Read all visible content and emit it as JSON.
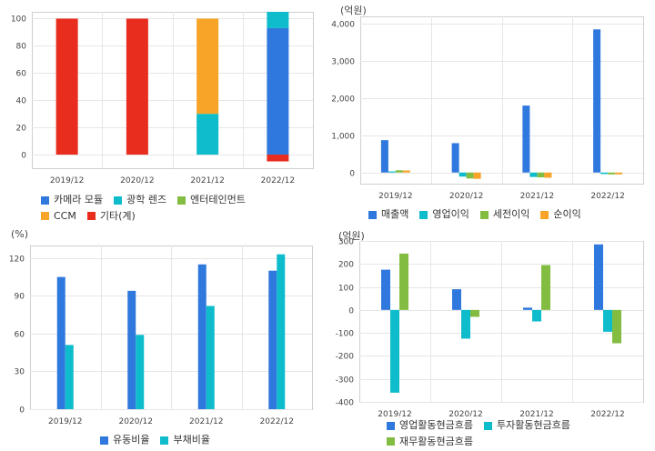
{
  "colors": {
    "blue": "#2f78de",
    "teal": "#0fbccc",
    "green": "#82bd41",
    "orange": "#f7a428",
    "red": "#e82c1e",
    "grid": "#e6e6e6",
    "axis": "#cfcfcf"
  },
  "chart_data": [
    {
      "id": "chart1",
      "type": "bar",
      "stacked": true,
      "title": "",
      "unit_label": "",
      "categories": [
        "2019/12",
        "2020/12",
        "2021/12",
        "2022/12"
      ],
      "ylim": [
        -10,
        105
      ],
      "yticks": [
        0,
        20,
        40,
        60,
        80,
        100
      ],
      "grid": true,
      "legend_position": "bottom-left",
      "series": [
        {
          "name": "카메라 모듈",
          "color": "#2f78de",
          "values": [
            0,
            0,
            0,
            93
          ]
        },
        {
          "name": "광학 렌즈",
          "color": "#0fbccc",
          "values": [
            0,
            0,
            30,
            12
          ]
        },
        {
          "name": "엔터테인먼트",
          "color": "#82bd41",
          "values": [
            0,
            0,
            0,
            0
          ]
        },
        {
          "name": "CCM",
          "color": "#f7a428",
          "values": [
            0,
            0,
            70,
            0
          ]
        },
        {
          "name": "기타(계)",
          "color": "#e82c1e",
          "values": [
            100,
            100,
            0,
            -5
          ]
        }
      ]
    },
    {
      "id": "chart2",
      "type": "bar",
      "title": "",
      "unit_label": "(억원)",
      "categories": [
        "2019/12",
        "2020/12",
        "2021/12",
        "2022/12"
      ],
      "ylim": [
        -300,
        4200
      ],
      "yticks": [
        0,
        1000,
        2000,
        3000,
        4000
      ],
      "ytick_labels": [
        "0",
        "1,000",
        "2,000",
        "3,000",
        "4,000"
      ],
      "grid": true,
      "legend_position": "bottom-left",
      "series": [
        {
          "name": "매출액",
          "color": "#2f78de",
          "values": [
            870,
            790,
            1800,
            3850
          ]
        },
        {
          "name": "영업이익",
          "color": "#0fbccc",
          "values": [
            30,
            -110,
            -120,
            -40
          ]
        },
        {
          "name": "세전이익",
          "color": "#82bd41",
          "values": [
            60,
            -160,
            -130,
            -50
          ]
        },
        {
          "name": "순이익",
          "color": "#f7a428",
          "values": [
            55,
            -170,
            -140,
            -50
          ]
        }
      ]
    },
    {
      "id": "chart3",
      "type": "bar",
      "title": "",
      "unit_label": "(%)",
      "categories": [
        "2019/12",
        "2020/12",
        "2021/12",
        "2022/12"
      ],
      "ylim": [
        0,
        130
      ],
      "yticks": [
        0,
        30,
        60,
        90,
        120
      ],
      "grid": true,
      "legend_position": "bottom-left",
      "series": [
        {
          "name": "유동비율",
          "color": "#2f78de",
          "values": [
            105,
            94,
            115,
            110
          ]
        },
        {
          "name": "부채비율",
          "color": "#0fbccc",
          "values": [
            51,
            59,
            82,
            123
          ]
        }
      ]
    },
    {
      "id": "chart4",
      "type": "bar",
      "title": "",
      "unit_label": "(억원)",
      "categories": [
        "2019/12",
        "2020/12",
        "2021/12",
        "2022/12"
      ],
      "ylim": [
        -400,
        300
      ],
      "yticks": [
        -400,
        -300,
        -200,
        -100,
        0,
        100,
        200,
        300
      ],
      "grid": true,
      "legend_position": "bottom-left",
      "series": [
        {
          "name": "영업활동현금흐름",
          "color": "#2f78de",
          "values": [
            175,
            90,
            10,
            285
          ]
        },
        {
          "name": "투자활동현금흐름",
          "color": "#0fbccc",
          "values": [
            -360,
            -125,
            -50,
            -95
          ]
        },
        {
          "name": "재무활동현금흐름",
          "color": "#82bd41",
          "values": [
            245,
            -30,
            195,
            -145
          ]
        }
      ]
    }
  ]
}
